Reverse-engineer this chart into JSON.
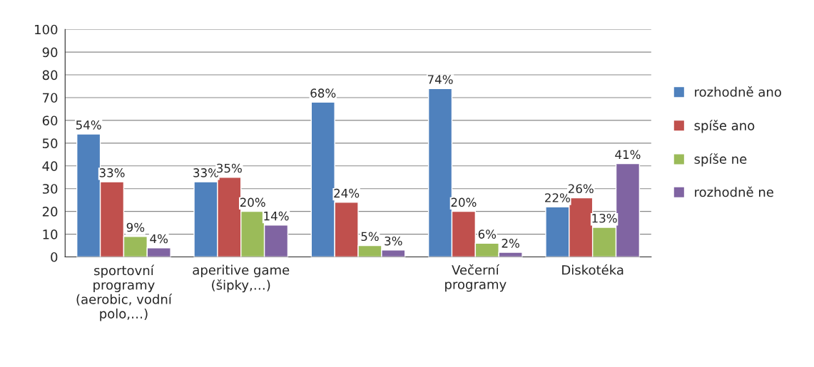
{
  "chart_data": {
    "type": "bar",
    "categories": [
      "sportovní\nprogramy\n(aerobic, vodní\npolo,…)",
      "aperitive game\n(šipky,…)",
      null,
      "Večerní\nprogramy",
      "Diskotéka"
    ],
    "series": [
      {
        "name": "rozhodně ano",
        "color": "#4f81bd",
        "values": [
          54,
          33,
          68,
          74,
          22
        ],
        "value_labels": [
          "54%",
          "33%",
          "68%",
          "74%",
          "22%"
        ]
      },
      {
        "name": "spíše ano",
        "color": "#c0504d",
        "values": [
          33,
          35,
          24,
          20,
          26
        ],
        "value_labels": [
          "33%",
          "35%",
          "24%",
          "20%",
          "26%"
        ]
      },
      {
        "name": "spíše ne",
        "color": "#9bbb59",
        "values": [
          9,
          20,
          5,
          6,
          13
        ],
        "value_labels": [
          "9%",
          "20%",
          "5%",
          "6%",
          "13%"
        ]
      },
      {
        "name": "rozhodně ne",
        "color": "#8064a2",
        "values": [
          4,
          14,
          3,
          2,
          41
        ],
        "value_labels": [
          "4%",
          "14%",
          "3%",
          "2%",
          "41%"
        ]
      }
    ],
    "ylim": [
      0,
      100
    ],
    "yticks": [
      0,
      10,
      20,
      30,
      40,
      50,
      60,
      70,
      80,
      90,
      100
    ],
    "grid": "y",
    "legend": "right"
  }
}
